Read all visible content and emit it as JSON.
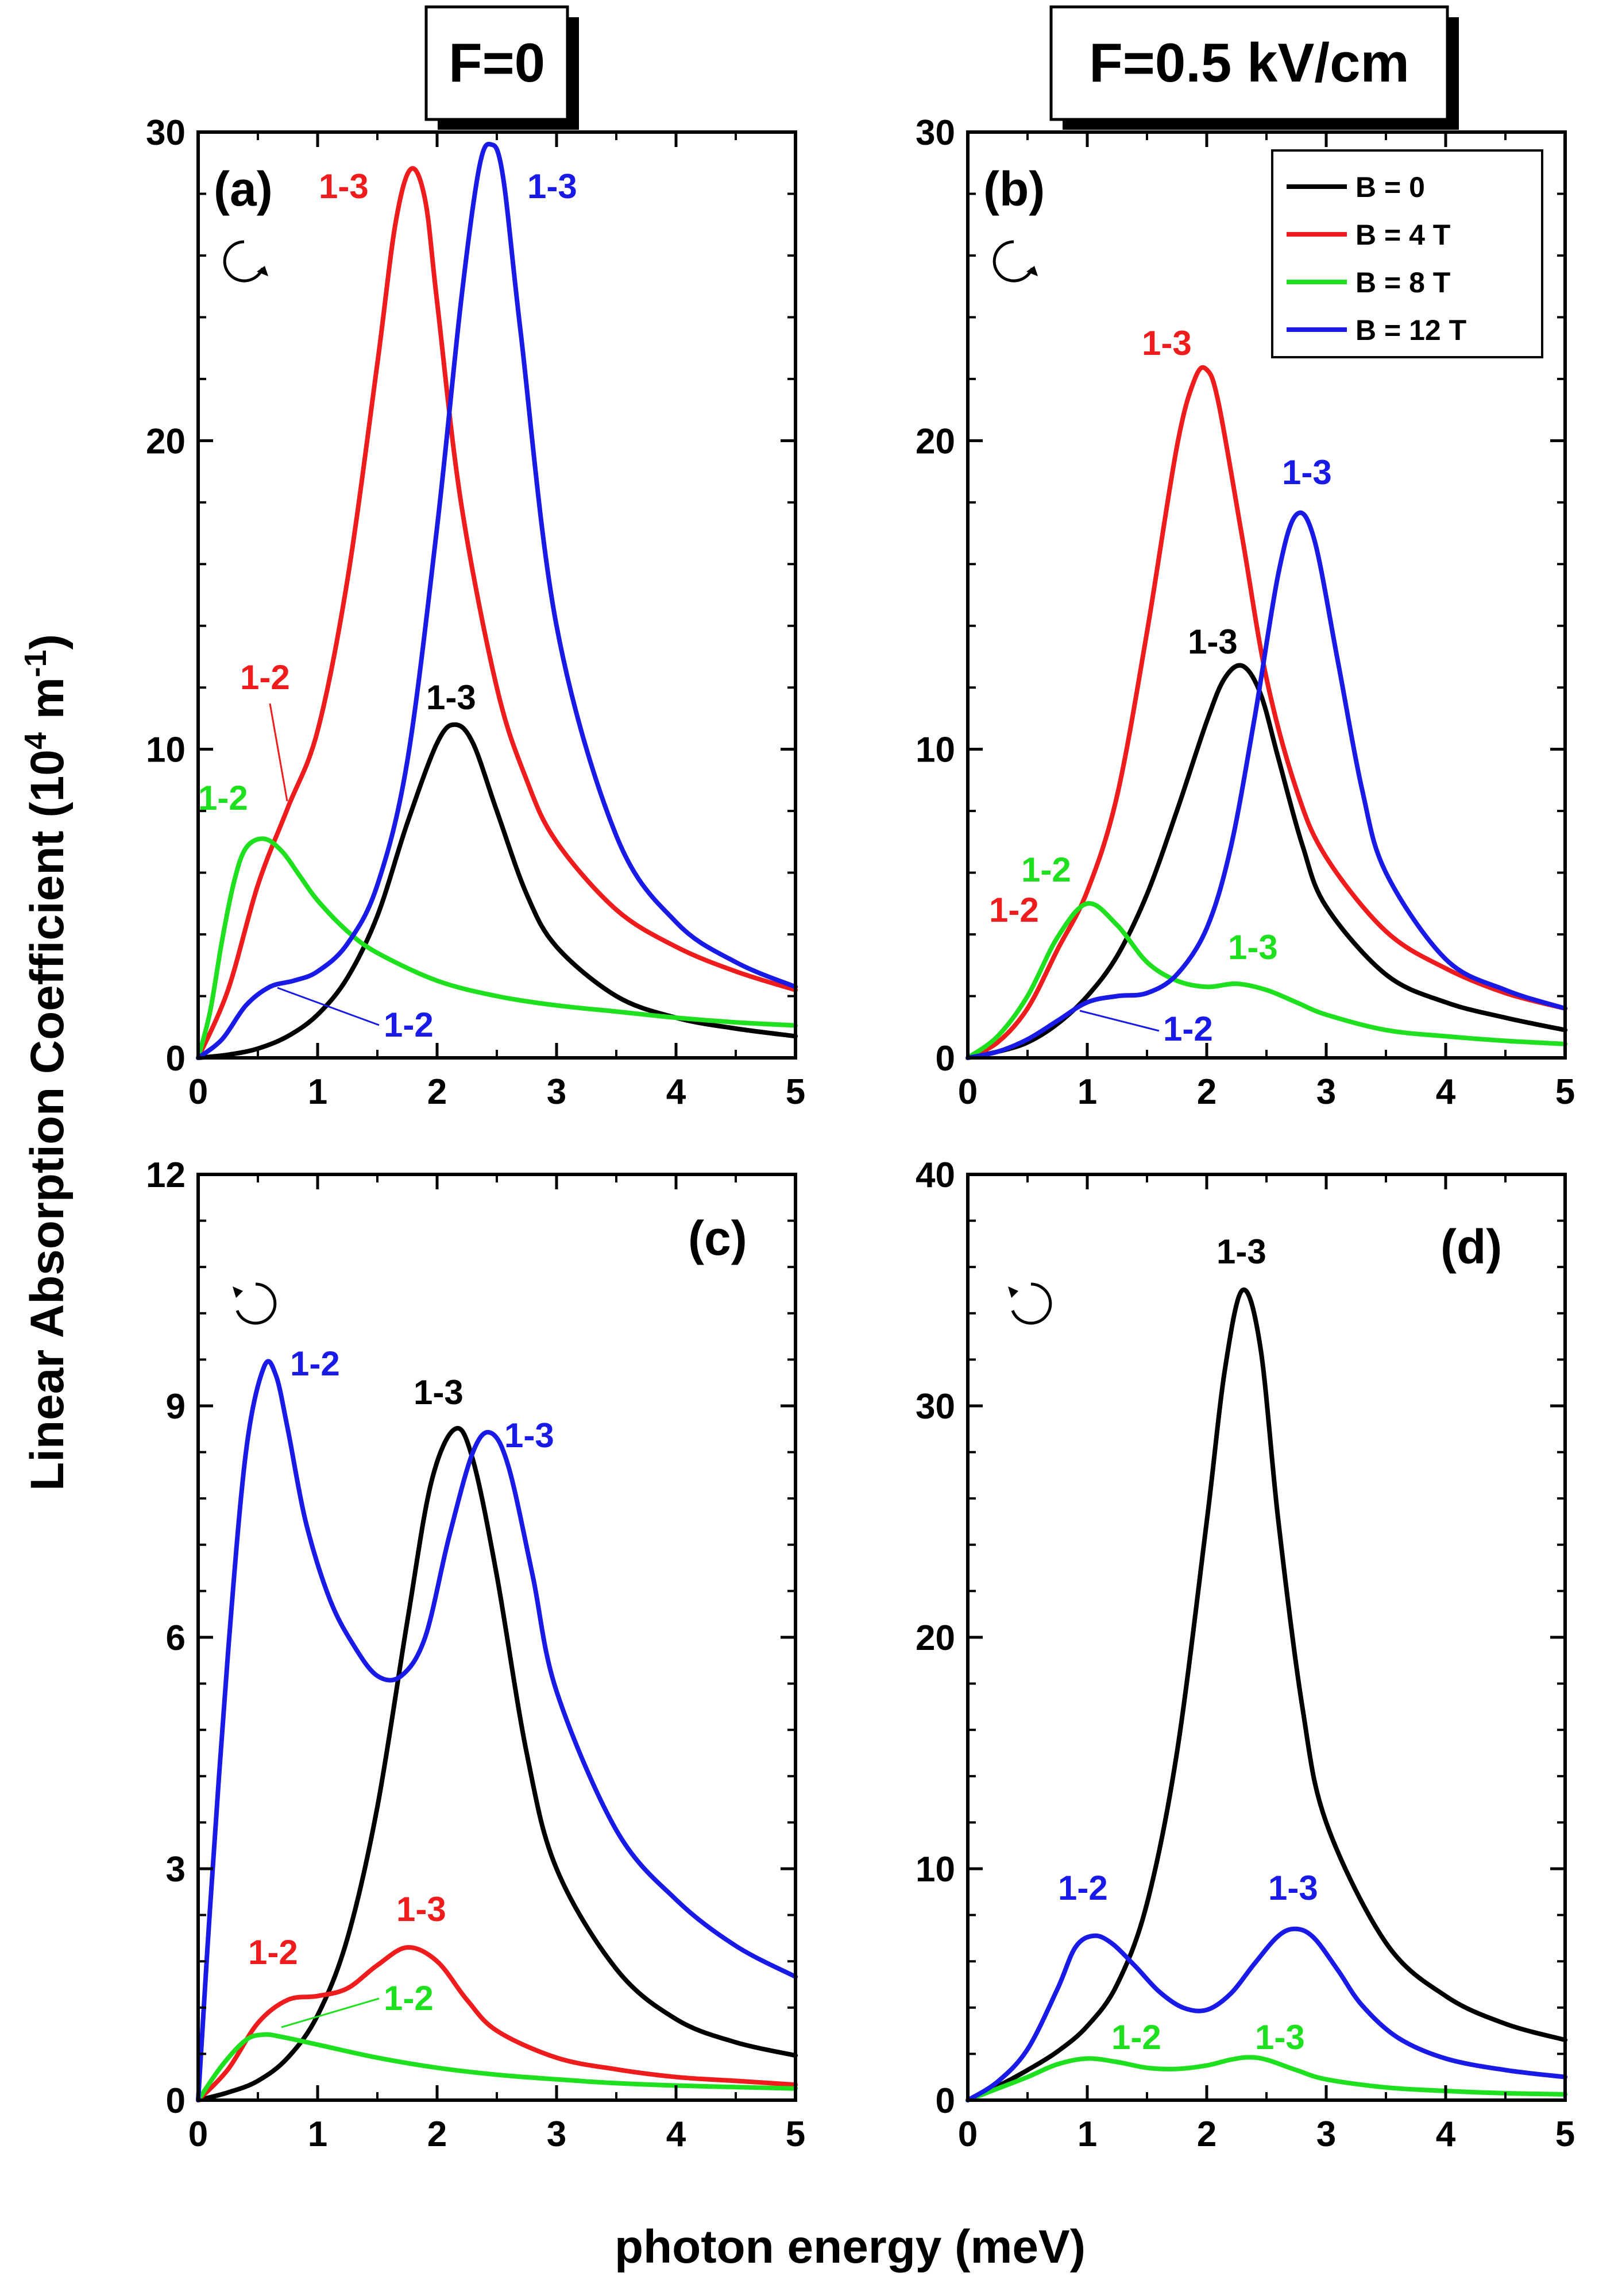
{
  "figure": {
    "ylabel_main": "Linear Absorption Coefficient (10",
    "ylabel_exp": "4",
    "ylabel_unit": " m",
    "ylabel_unit_exp": "-1",
    "ylabel_close": ")",
    "xlabel": "photon energy (meV)",
    "column_headers": [
      "F=0",
      "F=0.5 kV/cm"
    ]
  },
  "colors": {
    "B0": "#000000",
    "B4": "#ee1c1c",
    "B8": "#1ee01e",
    "B12": "#1a1ae6"
  },
  "legend": [
    {
      "label": "B = 0",
      "color": "#000000"
    },
    {
      "label": "B = 4 T",
      "color": "#ee1c1c"
    },
    {
      "label": "B = 8 T",
      "color": "#1ee01e"
    },
    {
      "label": "B = 12 T",
      "color": "#1a1ae6"
    }
  ],
  "chart_data": [
    {
      "panel": "(a)",
      "type": "line",
      "title": "F=0",
      "polarization": "clockwise",
      "xlabel": "photon energy (meV)",
      "ylabel": "Linear Absorption Coefficient (10^4 m^-1)",
      "xlim": [
        0,
        5
      ],
      "ylim": [
        0,
        30
      ],
      "xticks": [
        0,
        1,
        2,
        3,
        4,
        5
      ],
      "xticklabels": [
        "0",
        "1",
        "2",
        "3",
        "4",
        "5"
      ],
      "yticks": [
        0,
        10,
        20,
        30
      ],
      "yticklabels": [
        "0",
        "10",
        "20",
        "30"
      ],
      "series": [
        {
          "name": "B = 0",
          "color": "#000000",
          "x": [
            0,
            0.25,
            0.5,
            0.75,
            1.0,
            1.25,
            1.5,
            1.75,
            2.0,
            2.15,
            2.3,
            2.5,
            2.75,
            3.0,
            3.5,
            4.0,
            4.5,
            5.0
          ],
          "y": [
            0,
            0.1,
            0.3,
            0.7,
            1.4,
            2.6,
            4.6,
            7.6,
            10.2,
            10.8,
            10.2,
            8.0,
            5.3,
            3.6,
            2.0,
            1.3,
            0.95,
            0.7
          ]
        },
        {
          "name": "B = 4 T",
          "color": "#ee1c1c",
          "x": [
            0,
            0.25,
            0.5,
            0.75,
            1.0,
            1.25,
            1.5,
            1.65,
            1.78,
            1.9,
            2.0,
            2.2,
            2.5,
            2.75,
            3.0,
            3.5,
            4.0,
            4.5,
            5.0
          ],
          "y": [
            0,
            2.2,
            5.6,
            8.1,
            10.6,
            15.5,
            22.5,
            27.0,
            28.8,
            27.8,
            24.5,
            18.0,
            12.0,
            9.0,
            7.0,
            4.8,
            3.6,
            2.8,
            2.2
          ]
        },
        {
          "name": "B = 8 T",
          "color": "#1ee01e",
          "x": [
            0,
            0.1,
            0.2,
            0.3,
            0.4,
            0.55,
            0.7,
            0.85,
            1.0,
            1.25,
            1.5,
            2.0,
            2.5,
            3.0,
            3.5,
            4.0,
            4.5,
            5.0
          ],
          "y": [
            0,
            1.5,
            3.8,
            5.7,
            6.8,
            7.1,
            6.7,
            5.9,
            5.1,
            4.1,
            3.4,
            2.5,
            2.0,
            1.7,
            1.5,
            1.3,
            1.15,
            1.05
          ]
        },
        {
          "name": "B = 12 T",
          "color": "#1a1ae6",
          "x": [
            0,
            0.2,
            0.4,
            0.6,
            0.8,
            1.0,
            1.25,
            1.5,
            1.75,
            2.0,
            2.2,
            2.35,
            2.45,
            2.55,
            2.7,
            3.0,
            3.5,
            4.0,
            4.5,
            5.0
          ],
          "y": [
            0,
            0.6,
            1.7,
            2.3,
            2.5,
            2.8,
            3.7,
            5.6,
            9.6,
            17.2,
            24.5,
            28.8,
            29.6,
            28.6,
            23.5,
            14.0,
            7.2,
            4.4,
            3.1,
            2.3
          ]
        }
      ],
      "annotations": [
        {
          "text": "1-3",
          "color": "#ee1c1c"
        },
        {
          "text": "1-3",
          "color": "#1a1ae6"
        },
        {
          "text": "1-2",
          "color": "#ee1c1c"
        },
        {
          "text": "1-3",
          "color": "#000000"
        },
        {
          "text": "1-2",
          "color": "#1ee01e"
        },
        {
          "text": "1-2",
          "color": "#1a1ae6"
        }
      ]
    },
    {
      "panel": "(b)",
      "type": "line",
      "title": "F=0.5 kV/cm",
      "polarization": "clockwise",
      "xlabel": "photon energy (meV)",
      "ylabel": "Linear Absorption Coefficient (10^4 m^-1)",
      "xlim": [
        0,
        5
      ],
      "ylim": [
        0,
        30
      ],
      "xticks": [
        0,
        1,
        2,
        3,
        4,
        5
      ],
      "xticklabels": [
        "0",
        "1",
        "2",
        "3",
        "4",
        "5"
      ],
      "yticks": [
        0,
        10,
        20,
        30
      ],
      "yticklabels": [
        "0",
        "10",
        "20",
        "30"
      ],
      "legend_position": "top-right",
      "series": [
        {
          "name": "B = 0",
          "color": "#000000",
          "x": [
            0,
            0.25,
            0.5,
            0.75,
            1.0,
            1.25,
            1.5,
            1.75,
            2.0,
            2.15,
            2.3,
            2.45,
            2.6,
            2.8,
            3.0,
            3.5,
            4.0,
            4.5,
            5.0
          ],
          "y": [
            0,
            0.2,
            0.5,
            1.1,
            2.0,
            3.3,
            5.3,
            8.0,
            10.9,
            12.3,
            12.7,
            11.8,
            9.7,
            6.9,
            4.9,
            2.7,
            1.8,
            1.3,
            0.9
          ]
        },
        {
          "name": "B = 4 T",
          "color": "#ee1c1c",
          "x": [
            0,
            0.25,
            0.5,
            0.75,
            1.0,
            1.25,
            1.5,
            1.75,
            1.9,
            2.0,
            2.1,
            2.3,
            2.5,
            2.75,
            3.0,
            3.5,
            4.0,
            4.5,
            5.0
          ],
          "y": [
            0,
            0.5,
            1.6,
            3.5,
            5.4,
            8.5,
            13.8,
            19.8,
            22.0,
            22.3,
            21.2,
            16.8,
            12.3,
            8.7,
            6.5,
            4.1,
            2.9,
            2.1,
            1.6
          ]
        },
        {
          "name": "B = 8 T",
          "color": "#1ee01e",
          "x": [
            0,
            0.25,
            0.5,
            0.75,
            1.0,
            1.25,
            1.5,
            1.75,
            2.0,
            2.25,
            2.5,
            2.75,
            3.0,
            3.5,
            4.0,
            4.5,
            5.0
          ],
          "y": [
            0,
            0.7,
            2.0,
            3.9,
            5.0,
            4.3,
            3.1,
            2.5,
            2.3,
            2.4,
            2.2,
            1.8,
            1.4,
            0.9,
            0.7,
            0.55,
            0.45
          ]
        },
        {
          "name": "B = 12 T",
          "color": "#1a1ae6",
          "x": [
            0,
            0.25,
            0.5,
            0.75,
            1.0,
            1.25,
            1.5,
            1.75,
            2.0,
            2.2,
            2.4,
            2.6,
            2.75,
            2.9,
            3.1,
            3.3,
            3.5,
            4.0,
            4.5,
            5.0
          ],
          "y": [
            0,
            0.2,
            0.6,
            1.2,
            1.8,
            2.0,
            2.1,
            2.7,
            4.2,
            6.8,
            11.0,
            15.7,
            17.6,
            16.8,
            12.8,
            8.7,
            6.0,
            3.2,
            2.2,
            1.6
          ]
        }
      ],
      "annotations": [
        {
          "text": "1-3",
          "color": "#ee1c1c"
        },
        {
          "text": "1-3",
          "color": "#1a1ae6"
        },
        {
          "text": "1-3",
          "color": "#000000"
        },
        {
          "text": "1-2",
          "color": "#1ee01e"
        },
        {
          "text": "1-2",
          "color": "#ee1c1c"
        },
        {
          "text": "1-3",
          "color": "#1ee01e"
        },
        {
          "text": "1-2",
          "color": "#1a1ae6"
        }
      ]
    },
    {
      "panel": "(c)",
      "type": "line",
      "title": "F=0",
      "polarization": "counterclockwise",
      "xlabel": "photon energy (meV)",
      "ylabel": "Linear Absorption Coefficient (10^4 m^-1)",
      "xlim": [
        0,
        5
      ],
      "ylim": [
        0,
        12
      ],
      "xticks": [
        0,
        1,
        2,
        3,
        4,
        5
      ],
      "xticklabels": [
        "0",
        "1",
        "2",
        "3",
        "4",
        "5"
      ],
      "yticks": [
        0,
        3,
        6,
        9,
        12
      ],
      "yticklabels": [
        "0",
        "3",
        "6",
        "9",
        "12"
      ],
      "series": [
        {
          "name": "B = 0",
          "color": "#000000",
          "x": [
            0,
            0.25,
            0.5,
            0.75,
            1.0,
            1.25,
            1.5,
            1.75,
            1.95,
            2.15,
            2.3,
            2.5,
            2.75,
            3.0,
            3.5,
            4.0,
            4.5,
            5.0
          ],
          "y": [
            0,
            0.1,
            0.25,
            0.55,
            1.1,
            2.1,
            3.8,
            6.2,
            8.0,
            8.7,
            8.3,
            6.8,
            4.5,
            3.0,
            1.7,
            1.05,
            0.75,
            0.58
          ]
        },
        {
          "name": "B = 4 T",
          "color": "#ee1c1c",
          "x": [
            0,
            0.25,
            0.5,
            0.75,
            1.0,
            1.25,
            1.5,
            1.75,
            2.0,
            2.25,
            2.5,
            3.0,
            3.5,
            4.0,
            4.5,
            5.0
          ],
          "y": [
            0,
            0.4,
            1.0,
            1.3,
            1.35,
            1.45,
            1.75,
            1.98,
            1.8,
            1.3,
            0.9,
            0.55,
            0.4,
            0.3,
            0.25,
            0.2
          ]
        },
        {
          "name": "B = 8 T",
          "color": "#1ee01e",
          "x": [
            0,
            0.2,
            0.4,
            0.55,
            0.7,
            1.0,
            1.5,
            2.0,
            2.5,
            3.0,
            3.5,
            4.0,
            4.5,
            5.0
          ],
          "y": [
            0,
            0.45,
            0.78,
            0.85,
            0.82,
            0.72,
            0.55,
            0.42,
            0.33,
            0.27,
            0.22,
            0.19,
            0.17,
            0.15
          ]
        },
        {
          "name": "B = 12 T",
          "color": "#1a1ae6",
          "x": [
            0,
            0.1,
            0.25,
            0.4,
            0.55,
            0.65,
            0.75,
            0.9,
            1.1,
            1.3,
            1.5,
            1.7,
            1.9,
            2.1,
            2.3,
            2.45,
            2.6,
            2.8,
            3.0,
            3.5,
            4.0,
            4.5,
            5.0
          ],
          "y": [
            0,
            2.5,
            5.8,
            8.4,
            9.5,
            9.4,
            8.7,
            7.5,
            6.5,
            5.9,
            5.5,
            5.5,
            6.0,
            7.3,
            8.4,
            8.65,
            8.2,
            6.8,
            5.3,
            3.5,
            2.6,
            2.0,
            1.6
          ]
        }
      ],
      "annotations": [
        {
          "text": "1-2",
          "color": "#1a1ae6"
        },
        {
          "text": "1-3",
          "color": "#000000"
        },
        {
          "text": "1-3",
          "color": "#1a1ae6"
        },
        {
          "text": "1-3",
          "color": "#ee1c1c"
        },
        {
          "text": "1-2",
          "color": "#ee1c1c"
        },
        {
          "text": "1-2",
          "color": "#1ee01e"
        }
      ]
    },
    {
      "panel": "(d)",
      "type": "line",
      "title": "F=0.5 kV/cm",
      "polarization": "counterclockwise",
      "xlabel": "photon energy (meV)",
      "ylabel": "Linear Absorption Coefficient (10^4 m^-1)",
      "xlim": [
        0,
        5
      ],
      "ylim": [
        0,
        40
      ],
      "xticks": [
        0,
        1,
        2,
        3,
        4,
        5
      ],
      "xticklabels": [
        "0",
        "1",
        "2",
        "3",
        "4",
        "5"
      ],
      "yticks": [
        0,
        10,
        20,
        30,
        40
      ],
      "yticklabels": [
        "0",
        "10",
        "20",
        "30",
        "40"
      ],
      "series": [
        {
          "name": "B = 0",
          "color": "#000000",
          "x": [
            0,
            0.25,
            0.5,
            0.75,
            1.0,
            1.25,
            1.5,
            1.75,
            2.0,
            2.15,
            2.3,
            2.45,
            2.6,
            2.8,
            3.0,
            3.5,
            4.0,
            4.5,
            5.0
          ],
          "y": [
            0,
            0.6,
            1.3,
            2.1,
            3.2,
            5.0,
            8.5,
            15.0,
            25.0,
            31.5,
            35.0,
            32.5,
            25.0,
            17.0,
            12.0,
            6.8,
            4.5,
            3.3,
            2.6
          ]
        },
        {
          "name": "B = 8 T",
          "color": "#1ee01e",
          "x": [
            0,
            0.25,
            0.5,
            0.75,
            1.0,
            1.25,
            1.5,
            1.75,
            2.0,
            2.2,
            2.35,
            2.5,
            2.75,
            3.0,
            3.5,
            4.0,
            4.5,
            5.0
          ],
          "y": [
            0,
            0.5,
            1.0,
            1.55,
            1.8,
            1.65,
            1.4,
            1.35,
            1.5,
            1.75,
            1.85,
            1.75,
            1.3,
            0.9,
            0.55,
            0.4,
            0.3,
            0.25
          ]
        },
        {
          "name": "B = 12 T",
          "color": "#1a1ae6",
          "x": [
            0,
            0.25,
            0.5,
            0.75,
            0.9,
            1.05,
            1.2,
            1.4,
            1.6,
            1.8,
            2.0,
            2.2,
            2.4,
            2.6,
            2.75,
            2.9,
            3.1,
            3.3,
            3.6,
            4.0,
            4.5,
            5.0
          ],
          "y": [
            0,
            0.8,
            2.2,
            4.8,
            6.6,
            7.1,
            6.8,
            5.8,
            4.7,
            4.0,
            3.9,
            4.6,
            5.9,
            7.1,
            7.4,
            7.0,
            5.6,
            4.1,
            2.7,
            1.8,
            1.3,
            1.0
          ]
        }
      ],
      "annotations": [
        {
          "text": "1-3",
          "color": "#000000"
        },
        {
          "text": "1-2",
          "color": "#1a1ae6"
        },
        {
          "text": "1-3",
          "color": "#1a1ae6"
        },
        {
          "text": "1-2",
          "color": "#1ee01e"
        },
        {
          "text": "1-3",
          "color": "#1ee01e"
        }
      ]
    }
  ]
}
